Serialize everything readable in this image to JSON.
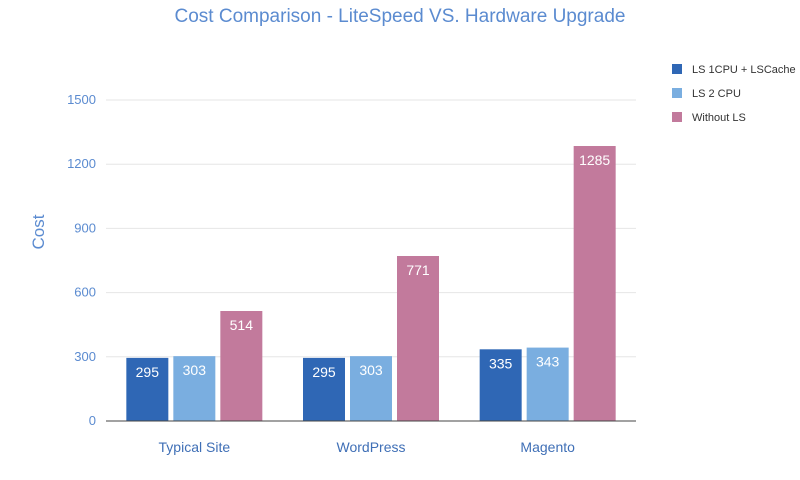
{
  "chart_data": {
    "type": "bar",
    "title": "Cost Comparison - LiteSpeed VS. Hardware Upgrade",
    "xlabel": "",
    "ylabel": "Cost",
    "categories": [
      "Typical Site",
      "WordPress",
      "Magento"
    ],
    "series": [
      {
        "name": "LS 1CPU + LSCache",
        "color": "#2f67b5",
        "values": [
          295,
          295,
          335
        ]
      },
      {
        "name": "LS 2 CPU",
        "color": "#7aaee0",
        "values": [
          303,
          303,
          343
        ]
      },
      {
        "name": "Without LS",
        "color": "#c27a9c",
        "values": [
          514,
          771,
          1285
        ]
      }
    ],
    "ylim": [
      0,
      1500
    ],
    "yticks": [
      0,
      300,
      600,
      900,
      1200,
      1500
    ],
    "grid": true,
    "legend_position": "top-right"
  }
}
